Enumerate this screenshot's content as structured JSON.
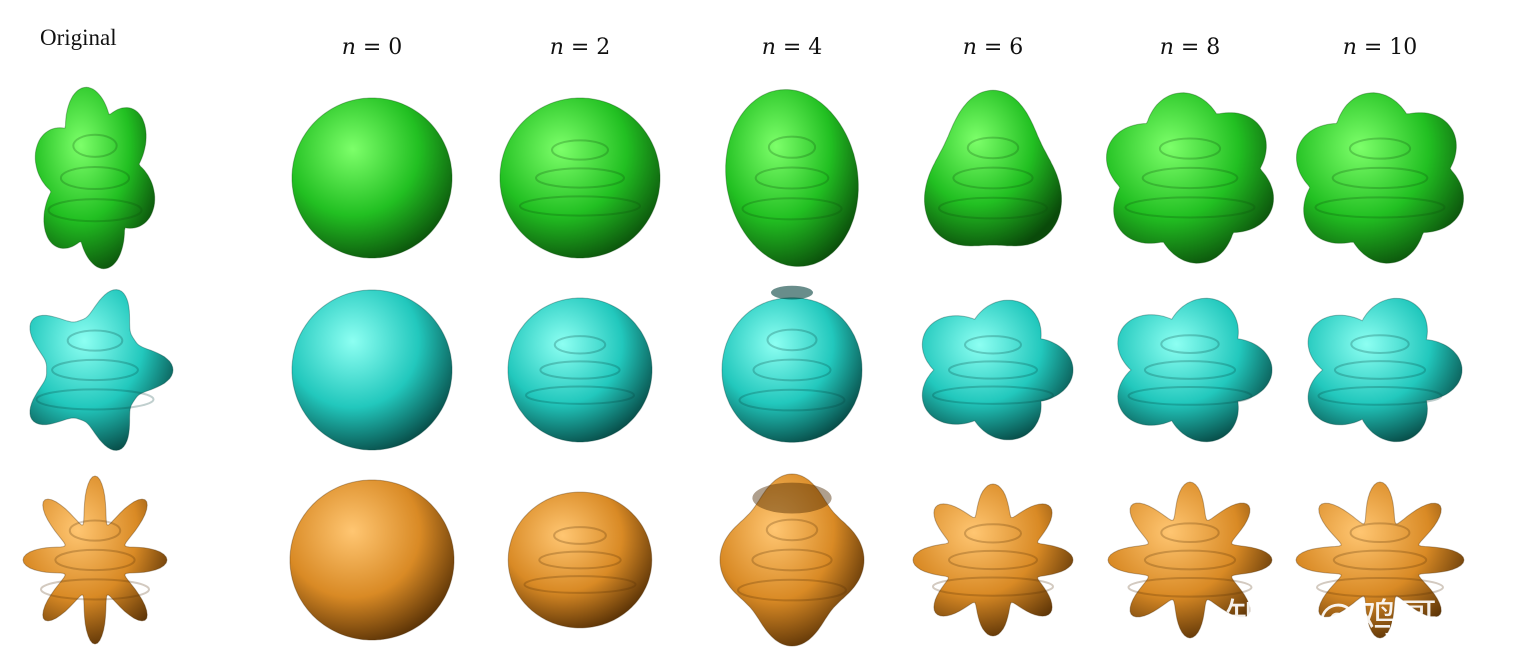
{
  "header": {
    "original_label": "Original",
    "columns": [
      "n = 0",
      "n = 2",
      "n = 4",
      "n = 6",
      "n = 8",
      "n = 10"
    ]
  },
  "rows": [
    {
      "color": "#22c022",
      "dark": "#0a4a0a",
      "light": "#7dff6a"
    },
    {
      "color": "#22c8bd",
      "dark": "#05413d",
      "light": "#8dfff2"
    },
    {
      "color": "#d98a25",
      "dark": "#4e2a03",
      "light": "#ffc672"
    }
  ],
  "watermark": "知乎 @鸡哥"
}
